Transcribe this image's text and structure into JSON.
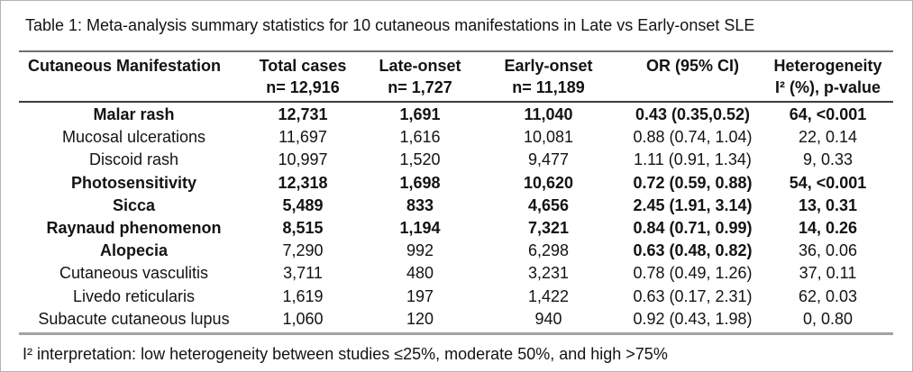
{
  "title": "Table 1: Meta-analysis summary statistics for 10 cutaneous manifestations in Late vs Early-onset SLE",
  "table": {
    "columns": [
      {
        "label": "Cutaneous Manifestation",
        "sub": ""
      },
      {
        "label": "Total cases",
        "sub": "n= 12,916"
      },
      {
        "label": "Late-onset",
        "sub": "n= 1,727"
      },
      {
        "label": "Early-onset",
        "sub": "n= 11,189"
      },
      {
        "label": "OR (95% CI)",
        "sub": ""
      },
      {
        "label": "Heterogeneity",
        "sub": "I² (%), p-value"
      }
    ],
    "rows": [
      {
        "cells": [
          "Malar rash",
          "12,731",
          "1,691",
          "11,040",
          "0.43 (0.35,0.52)",
          "64, <0.001"
        ],
        "bold": [
          true,
          true,
          true,
          true,
          true,
          true
        ]
      },
      {
        "cells": [
          "Mucosal ulcerations",
          "11,697",
          "1,616",
          "10,081",
          "0.88 (0.74, 1.04)",
          "22, 0.14"
        ],
        "bold": [
          false,
          false,
          false,
          false,
          false,
          false
        ]
      },
      {
        "cells": [
          "Discoid rash",
          "10,997",
          "1,520",
          "9,477",
          "1.11 (0.91, 1.34)",
          "9, 0.33"
        ],
        "bold": [
          false,
          false,
          false,
          false,
          false,
          false
        ]
      },
      {
        "cells": [
          "Photosensitivity",
          "12,318",
          "1,698",
          "10,620",
          "0.72 (0.59, 0.88)",
          "54, <0.001"
        ],
        "bold": [
          true,
          true,
          true,
          true,
          true,
          true
        ]
      },
      {
        "cells": [
          "Sicca",
          "5,489",
          "833",
          "4,656",
          "2.45 (1.91, 3.14)",
          "13, 0.31"
        ],
        "bold": [
          true,
          true,
          true,
          true,
          true,
          true
        ]
      },
      {
        "cells": [
          "Raynaud phenomenon",
          "8,515",
          "1,194",
          "7,321",
          "0.84 (0.71, 0.99)",
          "14, 0.26"
        ],
        "bold": [
          true,
          true,
          true,
          true,
          true,
          true
        ]
      },
      {
        "cells": [
          "Alopecia",
          "7,290",
          "992",
          "6,298",
          "0.63 (0.48, 0.82)",
          "36, 0.06"
        ],
        "bold": [
          true,
          false,
          false,
          false,
          true,
          false
        ]
      },
      {
        "cells": [
          "Cutaneous vasculitis",
          "3,711",
          "480",
          "3,231",
          "0.78 (0.49, 1.26)",
          "37, 0.11"
        ],
        "bold": [
          false,
          false,
          false,
          false,
          false,
          false
        ]
      },
      {
        "cells": [
          "Livedo reticularis",
          "1,619",
          "197",
          "1,422",
          "0.63 (0.17, 2.31)",
          "62, 0.03"
        ],
        "bold": [
          false,
          false,
          false,
          false,
          false,
          false
        ]
      },
      {
        "cells": [
          "Subacute cutaneous lupus",
          "1,060",
          "120",
          "940",
          "0.92 (0.43, 1.98)",
          "0, 0.80"
        ],
        "bold": [
          false,
          false,
          false,
          false,
          false,
          false
        ]
      }
    ]
  },
  "footnote": "I² interpretation: low heterogeneity between studies ≤25%, moderate 50%, and high >75%",
  "colors": {
    "text": "#131313",
    "rule_top": "#6e6e6e",
    "rule_header_bottom": "#3f3f3f",
    "rule_bottom": "#a3a3a3",
    "background": "#ffffff"
  }
}
